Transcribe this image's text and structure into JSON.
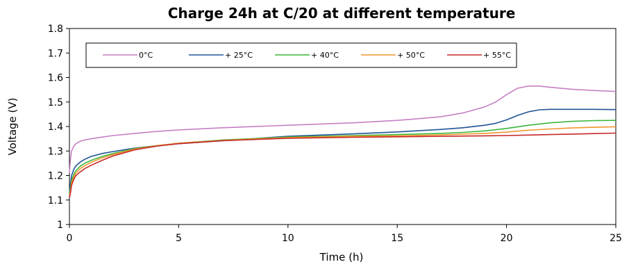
{
  "chart_data": {
    "type": "line",
    "title": "Charge 24h at C/20 at different temperature",
    "xlabel": "Time (h)",
    "ylabel": "Voltage (V)",
    "xlim": [
      0,
      25
    ],
    "ylim": [
      1.0,
      1.8
    ],
    "x_ticks": [
      "0",
      "5",
      "10",
      "15",
      "20",
      "25"
    ],
    "y_ticks": [
      "1",
      "1.1",
      "1.2",
      "1.3",
      "1.4",
      "1.5",
      "1.6",
      "1.7",
      "1.8"
    ],
    "grid": false,
    "legend_position": "top-inside",
    "series": [
      {
        "name": "0°C",
        "color": "#c77fc4",
        "x": [
          0,
          0.05,
          0.1,
          0.2,
          0.3,
          0.5,
          0.7,
          1,
          1.5,
          2,
          3,
          4,
          5,
          7,
          10,
          13,
          15,
          16,
          17,
          18,
          19,
          19.5,
          20,
          20.5,
          21,
          21.5,
          22,
          23,
          24,
          25
        ],
        "y": [
          1.21,
          1.27,
          1.3,
          1.32,
          1.33,
          1.34,
          1.345,
          1.35,
          1.357,
          1.363,
          1.372,
          1.38,
          1.386,
          1.395,
          1.405,
          1.415,
          1.425,
          1.432,
          1.44,
          1.455,
          1.48,
          1.5,
          1.53,
          1.556,
          1.565,
          1.565,
          1.56,
          1.552,
          1.547,
          1.543
        ]
      },
      {
        "name": "+ 25°C",
        "color": "#1f5496",
        "x": [
          0,
          0.05,
          0.1,
          0.2,
          0.3,
          0.5,
          0.7,
          1,
          1.5,
          2,
          3,
          4,
          5,
          7,
          10,
          13,
          15,
          17,
          18,
          19,
          19.5,
          20,
          20.5,
          21,
          21.5,
          22,
          23,
          24,
          25
        ],
        "y": [
          1.13,
          1.17,
          1.2,
          1.225,
          1.24,
          1.255,
          1.266,
          1.278,
          1.29,
          1.298,
          1.312,
          1.322,
          1.33,
          1.342,
          1.36,
          1.37,
          1.378,
          1.388,
          1.395,
          1.405,
          1.413,
          1.427,
          1.445,
          1.46,
          1.468,
          1.47,
          1.47,
          1.47,
          1.469
        ]
      },
      {
        "name": "+ 40°C",
        "color": "#3cb63c",
        "x": [
          0,
          0.05,
          0.1,
          0.2,
          0.3,
          0.5,
          0.7,
          1,
          1.5,
          2,
          3,
          4,
          5,
          7,
          10,
          13,
          15,
          17,
          18,
          19,
          20,
          21,
          22,
          23,
          24,
          25
        ],
        "y": [
          1.12,
          1.15,
          1.18,
          1.205,
          1.22,
          1.238,
          1.25,
          1.262,
          1.278,
          1.29,
          1.31,
          1.322,
          1.332,
          1.345,
          1.357,
          1.363,
          1.367,
          1.372,
          1.376,
          1.382,
          1.392,
          1.405,
          1.415,
          1.421,
          1.424,
          1.425
        ]
      },
      {
        "name": "+ 50°C",
        "color": "#f0962e",
        "x": [
          0,
          0.05,
          0.1,
          0.2,
          0.3,
          0.5,
          0.7,
          1,
          1.5,
          2,
          3,
          4,
          5,
          7,
          10,
          13,
          15,
          17,
          19,
          20,
          21,
          22,
          23,
          24,
          25
        ],
        "y": [
          1.12,
          1.14,
          1.17,
          1.195,
          1.21,
          1.228,
          1.24,
          1.254,
          1.272,
          1.286,
          1.308,
          1.322,
          1.332,
          1.343,
          1.355,
          1.36,
          1.362,
          1.366,
          1.372,
          1.377,
          1.385,
          1.39,
          1.394,
          1.397,
          1.399
        ]
      },
      {
        "name": "+ 55°C",
        "color": "#c62828",
        "x": [
          0,
          0.05,
          0.1,
          0.2,
          0.3,
          0.5,
          0.7,
          1,
          1.5,
          2,
          3,
          4,
          5,
          7,
          10,
          13,
          15,
          17,
          19,
          20,
          21,
          22,
          23,
          24,
          25
        ],
        "y": [
          1.11,
          1.13,
          1.16,
          1.185,
          1.2,
          1.215,
          1.228,
          1.242,
          1.262,
          1.28,
          1.305,
          1.32,
          1.33,
          1.342,
          1.352,
          1.356,
          1.358,
          1.36,
          1.362,
          1.363,
          1.365,
          1.367,
          1.369,
          1.371,
          1.373
        ]
      }
    ]
  }
}
